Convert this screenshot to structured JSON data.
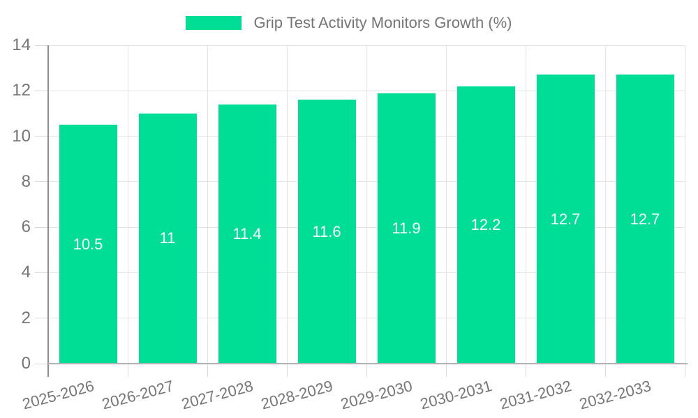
{
  "chart_data": {
    "type": "bar",
    "title": "Grip Test Activity Monitors Growth (%)",
    "legend_position": "top",
    "categories": [
      "2025-2026",
      "2026-2027",
      "2027-2028",
      "2028-2029",
      "2029-2030",
      "2030-2031",
      "2031-2032",
      "2032-2033"
    ],
    "values": [
      10.5,
      11,
      11.4,
      11.6,
      11.9,
      12.2,
      12.7,
      12.7
    ],
    "value_labels": [
      "10.5",
      "11",
      "11.4",
      "11.6",
      "11.9",
      "12.2",
      "12.7",
      "12.7"
    ],
    "xlabel": "",
    "ylabel": "",
    "ylim": [
      0,
      14
    ],
    "yticks": [
      0,
      2,
      4,
      6,
      8,
      10,
      12,
      14
    ],
    "ytick_labels": [
      "0",
      "2",
      "4",
      "6",
      "8",
      "10",
      "12",
      "14"
    ],
    "grid": true,
    "colors": {
      "bar": "#00DE96",
      "value_label": "#ffffff",
      "axis_text": "#757575",
      "grid_line": "#e3e3e3",
      "tick_line": "#d9d9d9",
      "axis_line_y": "#8f8f8f",
      "axis_line_x": "#b3b3b3",
      "background": "#ffffff"
    }
  }
}
